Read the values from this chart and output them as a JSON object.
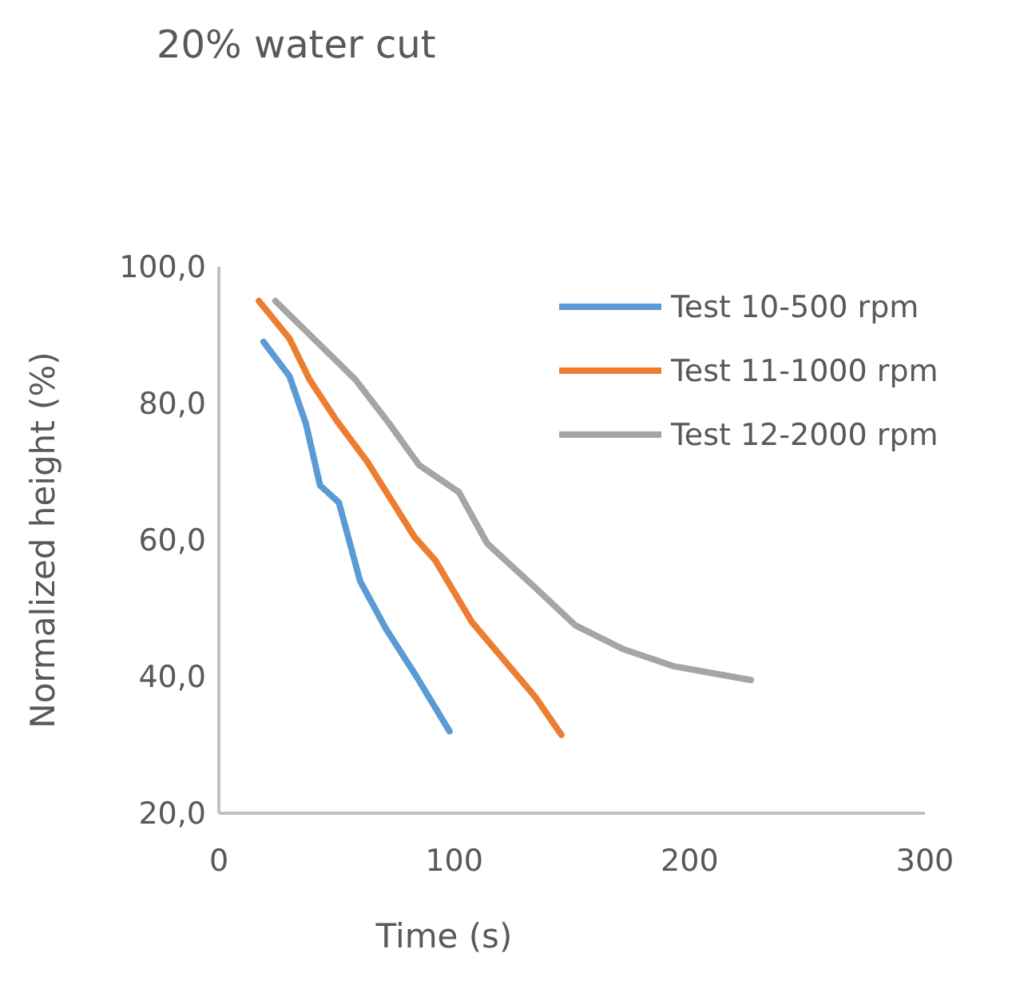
{
  "chart_data": {
    "type": "line",
    "title": "20% water cut",
    "xlabel": "Time (s)",
    "ylabel": "Normalized height (%)",
    "xlim": [
      0,
      300
    ],
    "xticks": [
      0,
      100,
      200,
      300
    ],
    "ylim": [
      20,
      100
    ],
    "yticks": [
      {
        "value": 20,
        "label": "20,0"
      },
      {
        "value": 40,
        "label": "40,0"
      },
      {
        "value": 60,
        "label": "60,0"
      },
      {
        "value": 80,
        "label": "80,0"
      },
      {
        "value": 100,
        "label": "100,0"
      }
    ],
    "grid": false,
    "legend": "top right",
    "marker": "none",
    "line_style": "solid",
    "series": [
      {
        "name": "Test 10-500 rpm",
        "color": "#5b9bd5",
        "x": [
          19,
          30,
          37,
          43,
          51,
          60,
          71,
          84,
          98
        ],
        "values": [
          89,
          84,
          77,
          68,
          65.5,
          54,
          47,
          40,
          32
        ]
      },
      {
        "name": "Test 11-1000 rpm",
        "color": "#ed7d31",
        "x": [
          17,
          30,
          38.5,
          50,
          63,
          83,
          92,
          107.5,
          121,
          134.5,
          145.5
        ],
        "values": [
          95,
          89.5,
          83.5,
          77.5,
          71.5,
          60.5,
          57,
          48,
          42.5,
          37,
          31.5
        ]
      },
      {
        "name": "Test 12-2000 rpm",
        "color": "#a5a5a5",
        "x": [
          24,
          58,
          72.5,
          85,
          102,
          114,
          134.5,
          151.5,
          172,
          193.5,
          226
        ],
        "values": [
          95,
          83.5,
          77,
          71,
          67,
          59.5,
          53,
          47.5,
          44,
          41.5,
          39.5
        ]
      }
    ]
  }
}
